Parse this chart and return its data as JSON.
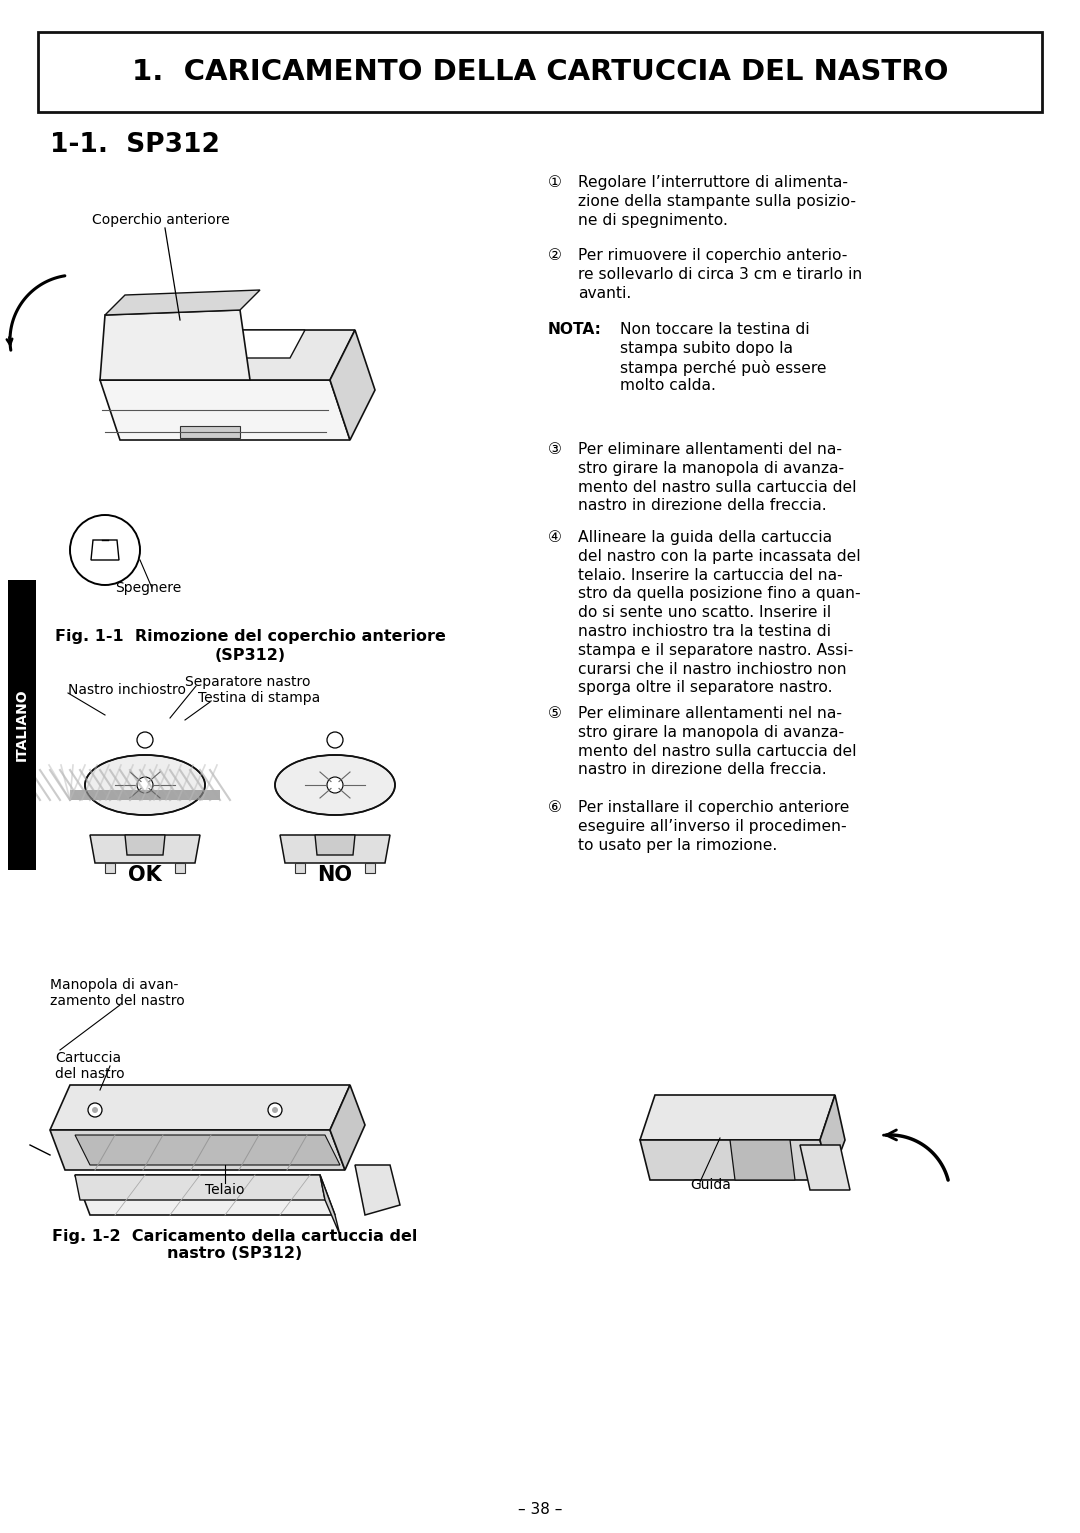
{
  "page_bg": "#ffffff",
  "title_box_text": "1.  CARICAMENTO DELLA CARTUCCIA DEL NASTRO",
  "subtitle": "1-1.  SP312",
  "section_label": "ITALIANO",
  "fig1_caption_line1": "Fig. 1-1  Rimozione del coperchio anteriore",
  "fig1_caption_line2": "(SP312)",
  "fig2_caption_line1": "Fig. 1-2  Caricamento della cartuccia del",
  "fig2_caption_line2": "nastro (SP312)",
  "label_coperchio": "Coperchio anteriore",
  "label_spegnere": "Spegnere",
  "label_nastro_inchiostro": "Nastro inchiostro",
  "label_separatore": "Separatore nastro",
  "label_testina": "Testina di stampa",
  "label_manopola_line1": "Manopola di avan-",
  "label_manopola_line2": "zamento del nastro",
  "label_cartuccia_line1": "Cartuccia",
  "label_cartuccia_line2": "del nastro",
  "label_telaio": "Telaio",
  "label_guida": "Guida",
  "label_ok": "OK",
  "label_no": "NO",
  "page_number": "– 38 –",
  "title_fontsize": 21,
  "subtitle_fontsize": 19,
  "body_fontsize": 11.2,
  "caption_fontsize": 11.5,
  "label_fontsize": 10.0,
  "section_label_fontsize": 10
}
